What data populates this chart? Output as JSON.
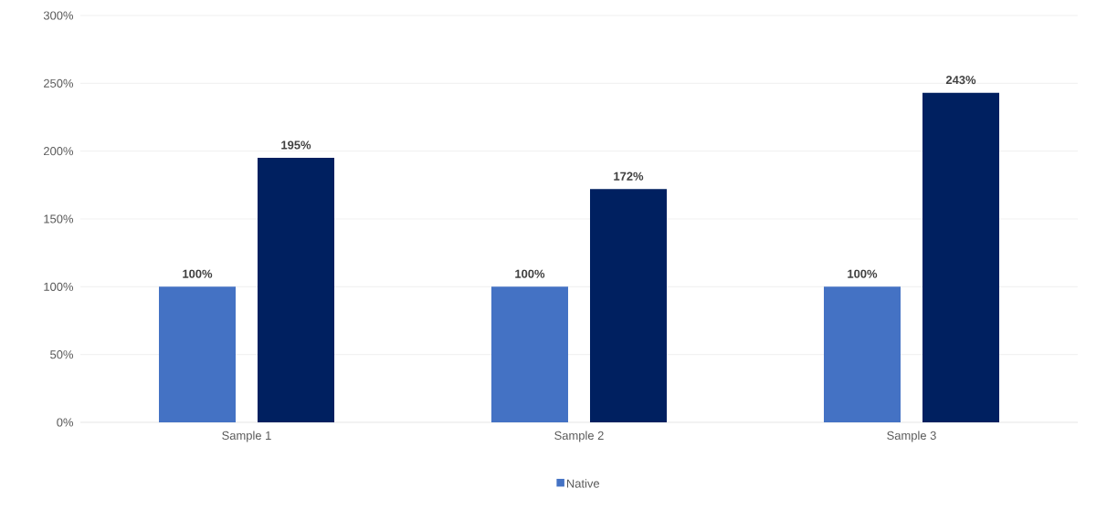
{
  "chart_data": {
    "type": "bar",
    "categories": [
      "Sample 1",
      "Sample 2",
      "Sample 3"
    ],
    "series": [
      {
        "name": "Native",
        "color": "#4472c4",
        "values": [
          100,
          100,
          100
        ],
        "value_labels": [
          "100%",
          "100%",
          "100%"
        ]
      },
      {
        "color": "#002060",
        "values": [
          195,
          172,
          243
        ],
        "value_labels": [
          "195%",
          "172%",
          "243%"
        ]
      }
    ],
    "ylim": [
      0,
      300
    ],
    "yticks": [
      {
        "value": 0,
        "label": "0%"
      },
      {
        "value": 50,
        "label": "50%"
      },
      {
        "value": 100,
        "label": "100%"
      },
      {
        "value": 150,
        "label": "150%"
      },
      {
        "value": 200,
        "label": "200%"
      },
      {
        "value": 250,
        "label": "250%"
      },
      {
        "value": 300,
        "label": "300%"
      }
    ],
    "grid": "y",
    "legend": "bottom"
  }
}
